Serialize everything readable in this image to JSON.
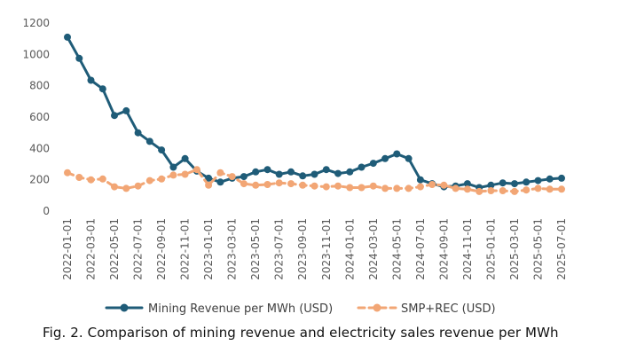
{
  "chart_data": {
    "type": "line",
    "title": "",
    "xlabel": "",
    "ylabel": "",
    "ylim": [
      0,
      1200
    ],
    "yticks": [
      0,
      200,
      400,
      600,
      800,
      1000,
      1200
    ],
    "grid": false,
    "legend_position": "bottom",
    "x": [
      "2022-01",
      "2022-02",
      "2022-03",
      "2022-04",
      "2022-05",
      "2022-06",
      "2022-07",
      "2022-08",
      "2022-09",
      "2022-10",
      "2022-11",
      "2022-12",
      "2023-01",
      "2023-02",
      "2023-03",
      "2023-04",
      "2023-05",
      "2023-06",
      "2023-07",
      "2023-08",
      "2023-09",
      "2023-10",
      "2023-11",
      "2023-12",
      "2024-01",
      "2024-02",
      "2024-03",
      "2024-04",
      "2024-05",
      "2024-06",
      "2024-07",
      "2024-08",
      "2024-09",
      "2024-10",
      "2024-11",
      "2024-12",
      "2025-01",
      "2025-02",
      "2025-03",
      "2025-04",
      "2025-05",
      "2025-06",
      "2025-07"
    ],
    "xtick_labels": [
      "2022-01-01",
      "2022-03-01",
      "2022-05-01",
      "2022-07-01",
      "2022-09-01",
      "2022-11-01",
      "2023-01-01",
      "2023-03-01",
      "2023-05-01",
      "2023-07-01",
      "2023-09-01",
      "2023-11-01",
      "2024-01-01",
      "2024-03-01",
      "2024-05-01",
      "2024-07-01",
      "2024-09-01",
      "2024-11-01",
      "2025-01-01",
      "2025-03-01",
      "2025-05-01",
      "2025-07-01"
    ],
    "series": [
      {
        "name": "Mining Revenue per MWh (USD)",
        "color": "#1f5c78",
        "style": "solid",
        "values": [
          1110,
          975,
          835,
          780,
          610,
          640,
          500,
          445,
          390,
          280,
          335,
          255,
          210,
          185,
          210,
          220,
          250,
          265,
          235,
          250,
          225,
          235,
          265,
          240,
          250,
          280,
          305,
          335,
          365,
          335,
          200,
          175,
          155,
          160,
          175,
          150,
          165,
          180,
          175,
          185,
          195,
          205,
          210
        ]
      },
      {
        "name": "SMP+REC (USD)",
        "color": "#f2a675",
        "style": "dashed",
        "values": [
          245,
          215,
          200,
          205,
          155,
          145,
          160,
          195,
          205,
          230,
          235,
          265,
          165,
          245,
          220,
          175,
          165,
          170,
          180,
          175,
          165,
          160,
          155,
          160,
          150,
          150,
          160,
          145,
          145,
          145,
          155,
          170,
          165,
          145,
          140,
          125,
          130,
          130,
          125,
          135,
          145,
          140,
          140
        ]
      }
    ]
  },
  "caption": "Fig. 2. Comparison of mining revenue and electricity sales revenue per MWh"
}
